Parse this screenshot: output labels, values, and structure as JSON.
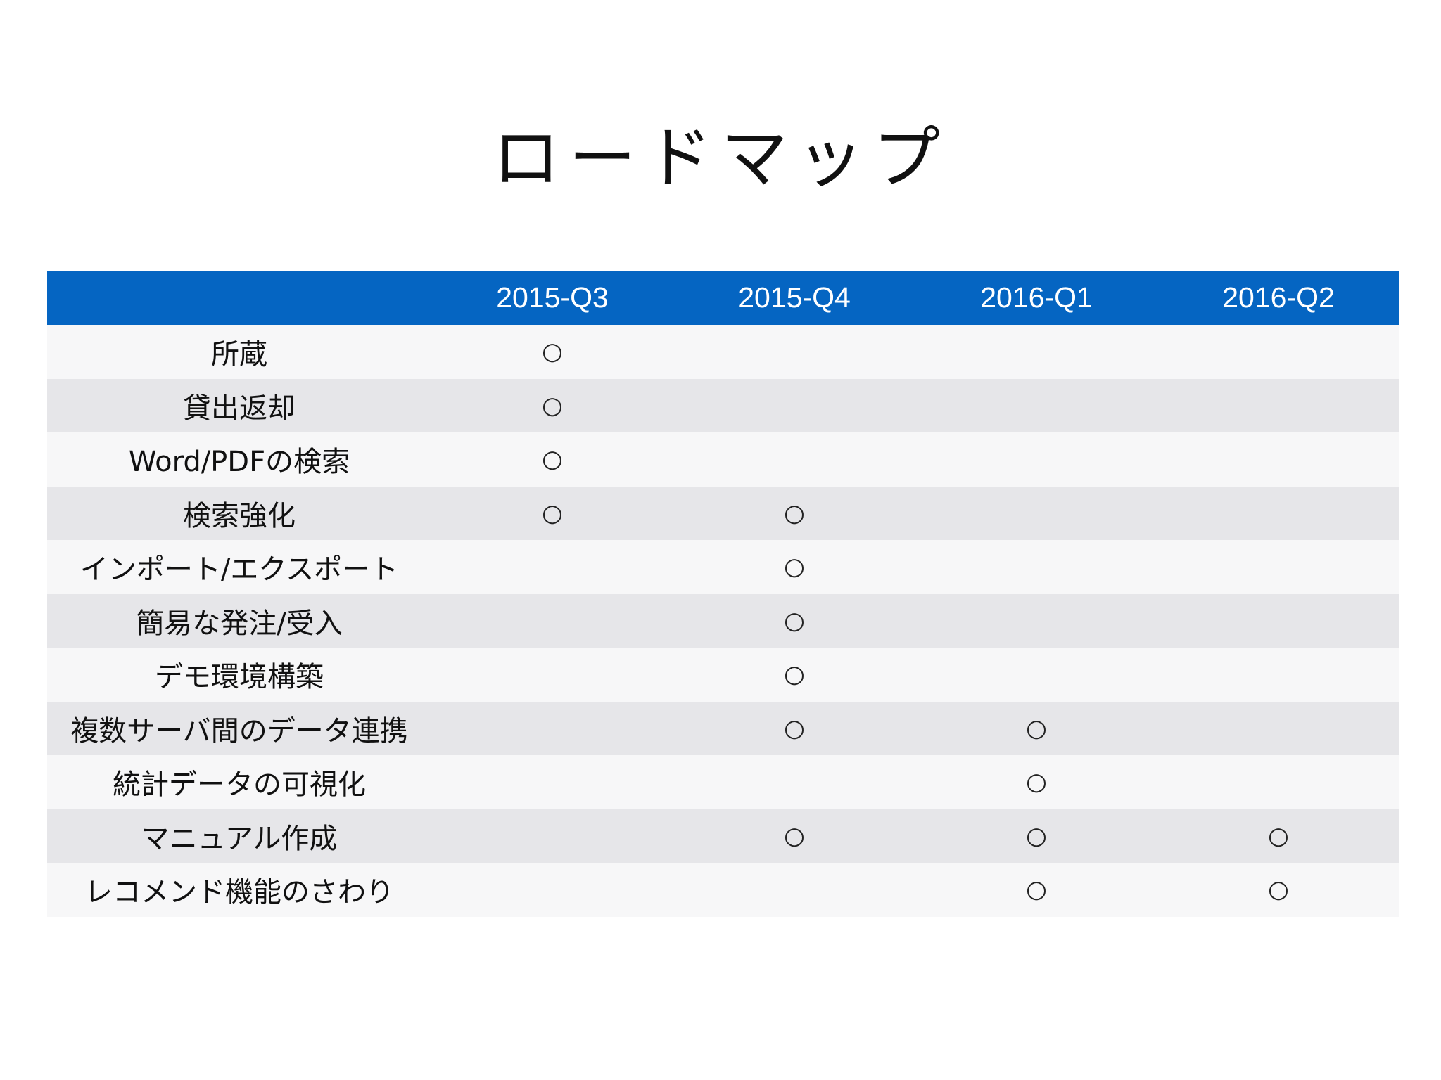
{
  "title": "ロードマップ",
  "table": {
    "corner": "",
    "columns": [
      "2015-Q3",
      "2015-Q4",
      "2016-Q1",
      "2016-Q2"
    ],
    "rows": [
      {
        "label": "所蔵",
        "cells": [
          "○",
          "",
          "",
          ""
        ]
      },
      {
        "label": "貸出返却",
        "cells": [
          "○",
          "",
          "",
          ""
        ]
      },
      {
        "label": "Word/PDFの検索",
        "cells": [
          "○",
          "",
          "",
          ""
        ]
      },
      {
        "label": "検索強化",
        "cells": [
          "○",
          "○",
          "",
          ""
        ]
      },
      {
        "label": "インポート/エクスポート",
        "cells": [
          "",
          "○",
          "",
          ""
        ]
      },
      {
        "label": "簡易な発注/受入",
        "cells": [
          "",
          "○",
          "",
          ""
        ]
      },
      {
        "label": "デモ環境構築",
        "cells": [
          "",
          "○",
          "",
          ""
        ]
      },
      {
        "label": "複数サーバ間のデータ連携",
        "cells": [
          "",
          "○",
          "○",
          ""
        ]
      },
      {
        "label": "統計データの可視化",
        "cells": [
          "",
          "",
          "○",
          ""
        ]
      },
      {
        "label": "マニュアル作成",
        "cells": [
          "",
          "○",
          "○",
          "○"
        ]
      },
      {
        "label": "レコメンド機能のさわり",
        "cells": [
          "",
          "",
          "○",
          "○"
        ]
      }
    ]
  },
  "colors": {
    "header_background": "#0565c2",
    "header_text": "#ffffff",
    "row_light": "#f7f7f8",
    "row_dark": "#e6e6e9"
  }
}
